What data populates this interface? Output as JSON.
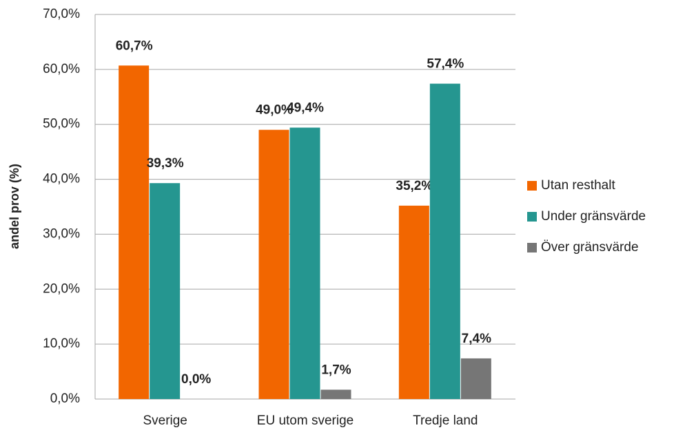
{
  "chart_data": {
    "type": "bar",
    "y_label": "andel prov (%)",
    "categories": [
      "Sverige",
      "EU utom sverige",
      "Tredje land"
    ],
    "series": [
      {
        "name": "Utan resthalt",
        "color": "#f26600",
        "values": [
          60.7,
          49.0,
          35.2
        ],
        "value_labels": [
          "60,7%",
          "49,0%",
          "35,2%"
        ]
      },
      {
        "name": "Under gränsvärde",
        "color": "#259690",
        "values": [
          39.3,
          49.4,
          57.4
        ],
        "value_labels": [
          "39,3%",
          "49,4%",
          "57,4%"
        ]
      },
      {
        "name": "Över gränsvärde",
        "color": "#767676",
        "values": [
          0.0,
          1.7,
          7.4
        ],
        "value_labels": [
          "0,0%",
          "1,7%",
          "7,4%"
        ]
      }
    ],
    "ylim": [
      0,
      70
    ],
    "yticks": [
      {
        "value": 0,
        "label": "0,0%"
      },
      {
        "value": 10,
        "label": "10,0%"
      },
      {
        "value": 20,
        "label": "20,0%"
      },
      {
        "value": 30,
        "label": "30,0%"
      },
      {
        "value": 40,
        "label": "40,0%"
      },
      {
        "value": 50,
        "label": "50,0%"
      },
      {
        "value": 60,
        "label": "60,0%"
      },
      {
        "value": 70,
        "label": "70,0%"
      }
    ],
    "grid": true,
    "legend": "right"
  }
}
